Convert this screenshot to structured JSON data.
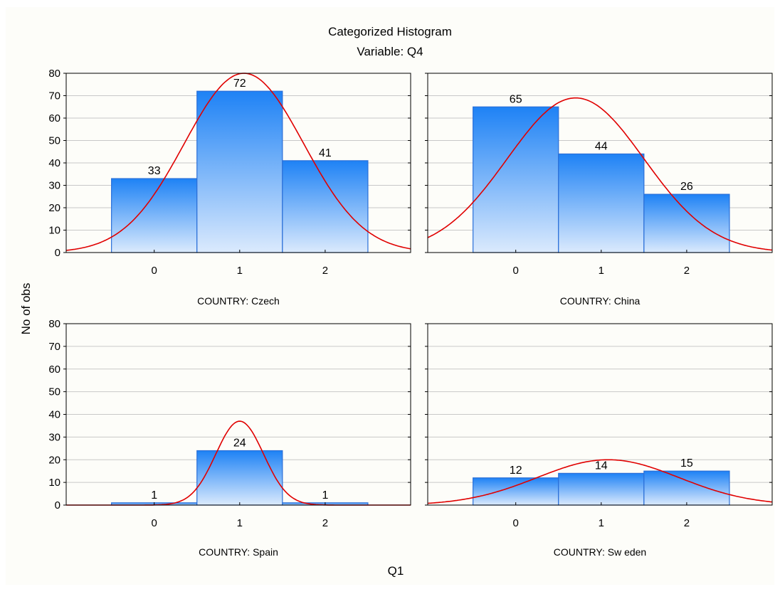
{
  "title": "Categorized Histogram",
  "subtitle": "Variable: Q4",
  "ylabel": "No of obs",
  "xlabel": "Q1",
  "colors": {
    "background": "#fdfdf9",
    "bar_top": "#1e82f5",
    "bar_bottom": "#dbeafd",
    "bar_edge": "#2a6fd8",
    "curve": "#e00000",
    "grid": "#c8c8c8"
  },
  "chart_data": [
    {
      "type": "bar",
      "panel_label": "COUNTRY: Czech",
      "categories": [
        "0",
        "1",
        "2"
      ],
      "values": [
        33,
        72,
        41
      ],
      "ylim": [
        0,
        80
      ],
      "yticks": [
        "0",
        "10",
        "20",
        "30",
        "40",
        "50",
        "60",
        "70",
        "80"
      ],
      "normal_curve": {
        "mean": 1.05,
        "sd": 0.7,
        "peak": 80
      },
      "grid": true
    },
    {
      "type": "bar",
      "panel_label": "COUNTRY: China",
      "categories": [
        "0",
        "1",
        "2"
      ],
      "values": [
        65,
        44,
        26
      ],
      "ylim": [
        0,
        80
      ],
      "yticks": [
        "0",
        "10",
        "20",
        "30",
        "40",
        "50",
        "60",
        "70",
        "80"
      ],
      "normal_curve": {
        "mean": 0.7,
        "sd": 0.8,
        "peak": 69
      },
      "grid": true
    },
    {
      "type": "bar",
      "panel_label": "COUNTRY: Spain",
      "categories": [
        "0",
        "1",
        "2"
      ],
      "values": [
        1,
        24,
        1
      ],
      "ylim": [
        0,
        80
      ],
      "yticks": [
        "0",
        "10",
        "20",
        "30",
        "40",
        "50",
        "60",
        "70",
        "80"
      ],
      "normal_curve": {
        "mean": 1.0,
        "sd": 0.28,
        "peak": 37
      },
      "grid": true
    },
    {
      "type": "bar",
      "panel_label": "COUNTRY: Sw eden",
      "categories": [
        "0",
        "1",
        "2"
      ],
      "values": [
        12,
        14,
        15
      ],
      "ylim": [
        0,
        80
      ],
      "yticks": [
        "0",
        "10",
        "20",
        "30",
        "40",
        "50",
        "60",
        "70",
        "80"
      ],
      "normal_curve": {
        "mean": 1.08,
        "sd": 0.83,
        "peak": 20
      },
      "grid": true
    }
  ]
}
